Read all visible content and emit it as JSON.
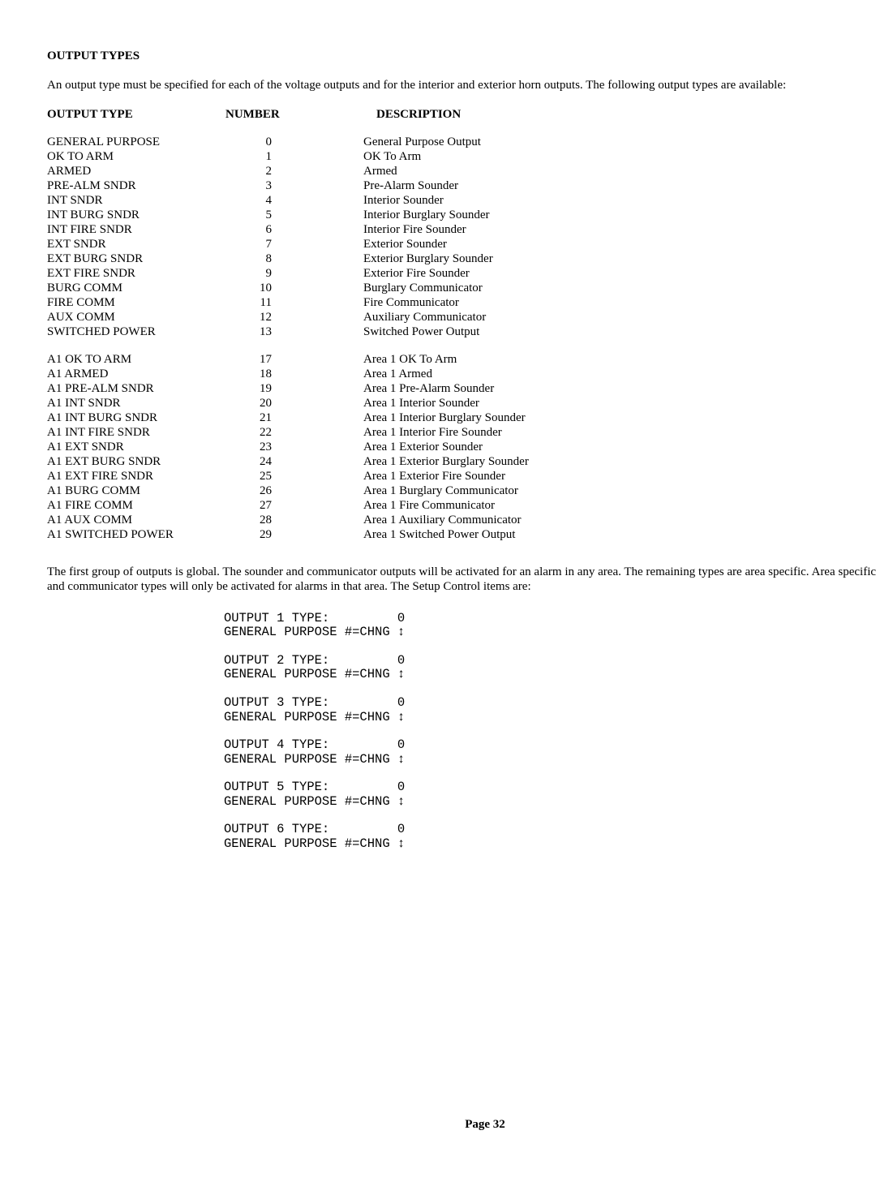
{
  "heading": "OUTPUT TYPES",
  "intro": "An output type must be specified for each of the voltage outputs and for the interior and exterior horn outputs.  The following output types are available:",
  "cols": {
    "type": "OUTPUT TYPE",
    "number": "NUMBER",
    "desc": "DESCRIPTION"
  },
  "group1": [
    {
      "t": "GENERAL PURPOSE",
      "n": "0",
      "d": "General Purpose Output"
    },
    {
      "t": "OK TO ARM",
      "n": "1",
      "d": "OK To Arm"
    },
    {
      "t": "ARMED",
      "n": "2",
      "d": "Armed"
    },
    {
      "t": "PRE-ALM SNDR",
      "n": "3",
      "d": "Pre-Alarm Sounder"
    },
    {
      "t": "INT SNDR",
      "n": "4",
      "d": "Interior Sounder"
    },
    {
      "t": "INT BURG SNDR",
      "n": "5",
      "d": "Interior Burglary Sounder"
    },
    {
      "t": "INT FIRE SNDR",
      "n": "6",
      "d": "Interior Fire Sounder"
    },
    {
      "t": "EXT SNDR",
      "n": "7",
      "d": "Exterior Sounder"
    },
    {
      "t": "EXT BURG SNDR",
      "n": "8",
      "d": "Exterior Burglary Sounder"
    },
    {
      "t": "EXT FIRE SNDR",
      "n": "9",
      "d": "Exterior Fire Sounder"
    },
    {
      "t": "BURG COMM",
      "n": "10",
      "d": "Burglary Communicator"
    },
    {
      "t": "FIRE COMM",
      "n": "11",
      "d": "Fire Communicator"
    },
    {
      "t": "AUX COMM",
      "n": "12",
      "d": "Auxiliary Communicator"
    },
    {
      "t": "SWITCHED POWER",
      "n": "13",
      "d": "Switched Power Output"
    }
  ],
  "group2": [
    {
      "t": "A1  OK TO ARM",
      "n": "17",
      "d": "Area 1 OK To Arm"
    },
    {
      "t": "A1  ARMED",
      "n": "18",
      "d": "Area 1 Armed"
    },
    {
      "t": "A1  PRE-ALM SNDR",
      "n": "19",
      "d": "Area 1 Pre-Alarm Sounder"
    },
    {
      "t": "A1  INT SNDR",
      "n": "20",
      "d": "Area 1 Interior Sounder"
    },
    {
      "t": "A1  INT BURG SNDR",
      "n": "21",
      "d": "Area 1 Interior Burglary Sounder"
    },
    {
      "t": "A1  INT FIRE SNDR",
      "n": "22",
      "d": "Area 1 Interior Fire Sounder"
    },
    {
      "t": "A1  EXT SNDR",
      "n": "23",
      "d": "Area 1 Exterior Sounder"
    },
    {
      "t": "A1  EXT BURG SNDR",
      "n": "24",
      "d": "Area 1 Exterior Burglary Sounder"
    },
    {
      "t": "A1  EXT FIRE SNDR",
      "n": "25",
      "d": "Area 1 Exterior Fire Sounder"
    },
    {
      "t": "A1  BURG COMM",
      "n": "26",
      "d": "Area 1 Burglary Communicator"
    },
    {
      "t": "A1  FIRE COMM",
      "n": "27",
      "d": "Area 1 Fire Communicator"
    },
    {
      "t": "A1  AUX COMM",
      "n": "28",
      "d": "Area 1 Auxiliary Communicator"
    },
    {
      "t": "A1  SWITCHED POWER",
      "n": "29",
      "d": "Area 1 Switched Power Output"
    }
  ],
  "explain": "The first group of outputs is global.  The sounder and communicator outputs will be activated for an alarm in any area.  The remaining types are area specific.  Area specific sounder and communicator types will only be activated for alarms in that area.  The Setup Control items are:",
  "setup": [
    {
      "l1a": "OUTPUT 1 TYPE:",
      "l1b": "0",
      "l2a": "GENERAL PURPOSE #=CHNG",
      "l2b": "↕"
    },
    {
      "l1a": "OUTPUT 2 TYPE:",
      "l1b": "0",
      "l2a": "GENERAL PURPOSE #=CHNG",
      "l2b": "↕"
    },
    {
      "l1a": "OUTPUT 3 TYPE:",
      "l1b": "0",
      "l2a": "GENERAL PURPOSE #=CHNG",
      "l2b": "↕"
    },
    {
      "l1a": "OUTPUT 4 TYPE:",
      "l1b": "0",
      "l2a": "GENERAL PURPOSE #=CHNG",
      "l2b": "↕"
    },
    {
      "l1a": "OUTPUT 5 TYPE:",
      "l1b": "0",
      "l2a": "GENERAL PURPOSE #=CHNG",
      "l2b": "↕"
    },
    {
      "l1a": "OUTPUT 6 TYPE:",
      "l1b": "0",
      "l2a": "GENERAL PURPOSE #=CHNG",
      "l2b": "↕"
    }
  ],
  "pageno": "Page 32"
}
